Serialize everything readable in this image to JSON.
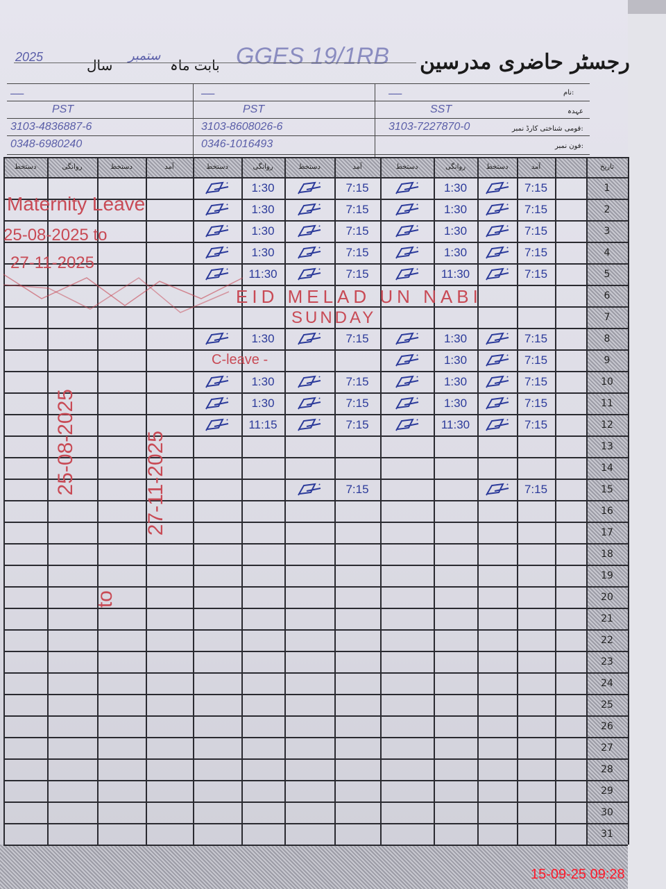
{
  "header": {
    "title": "رجسٹر حاضری مدرسین",
    "school": "GGES 19/1RB",
    "month_label": "بابت ماہ",
    "month_value": "ستمبر",
    "year_label": "سال",
    "year_value": "2025"
  },
  "info_labels": {
    "name": "نام:",
    "designation": "عہدہ",
    "cnic": "قومی شناختی کارڈ نمبر:",
    "phone": "فون نمبر:"
  },
  "column_headers": {
    "signature": "دستخط",
    "departure": "روانگی",
    "arrival": "آمد",
    "date": "تاریخ"
  },
  "teachers": [
    {
      "name": "ـــــ",
      "designation": "SST",
      "cnic": "3103-7227870-0",
      "phone": "",
      "records": [
        {
          "day": 1,
          "arrival": "7:15",
          "departure": "1:30",
          "signed": true
        },
        {
          "day": 2,
          "arrival": "7:15",
          "departure": "1:30",
          "signed": true
        },
        {
          "day": 3,
          "arrival": "7:15",
          "departure": "1:30",
          "signed": true
        },
        {
          "day": 4,
          "arrival": "7:15",
          "departure": "1:30",
          "signed": true
        },
        {
          "day": 5,
          "arrival": "7:15",
          "departure": "11:30",
          "signed": true
        },
        {
          "day": 8,
          "arrival": "7:15",
          "departure": "1:30",
          "signed": true
        },
        {
          "day": 9,
          "arrival": "7:15",
          "departure": "1:30",
          "signed": true
        },
        {
          "day": 10,
          "arrival": "7:15",
          "departure": "1:30",
          "signed": true
        },
        {
          "day": 11,
          "arrival": "7:15",
          "departure": "1:30",
          "signed": true
        },
        {
          "day": 12,
          "arrival": "7:15",
          "departure": "11:30",
          "signed": true
        },
        {
          "day": 15,
          "arrival": "7:15",
          "departure": "",
          "signed": true
        }
      ]
    },
    {
      "name": "ـــــ",
      "designation": "PST",
      "cnic": "3103-8608026-6",
      "phone": "0346-1016493",
      "records": [
        {
          "day": 1,
          "arrival": "7:15",
          "departure": "1:30",
          "signed": true
        },
        {
          "day": 2,
          "arrival": "7:15",
          "departure": "1:30",
          "signed": true
        },
        {
          "day": 3,
          "arrival": "7:15",
          "departure": "1:30",
          "signed": true
        },
        {
          "day": 4,
          "arrival": "7:15",
          "departure": "1:30",
          "signed": true
        },
        {
          "day": 5,
          "arrival": "7:15",
          "departure": "11:30",
          "signed": true
        },
        {
          "day": 8,
          "arrival": "7:15",
          "departure": "1:30",
          "signed": true
        },
        {
          "day": 10,
          "arrival": "7:15",
          "departure": "1:30",
          "signed": true
        },
        {
          "day": 11,
          "arrival": "7:15",
          "departure": "1:30",
          "signed": true
        },
        {
          "day": 12,
          "arrival": "7:15",
          "departure": "11:15",
          "signed": true
        },
        {
          "day": 15,
          "arrival": "7:15",
          "departure": "",
          "signed": true
        }
      ]
    },
    {
      "name": "ـــــ",
      "designation": "PST",
      "cnic": "3103-4836887-6",
      "phone": "0348-6980240",
      "records": []
    }
  ],
  "annotations": {
    "maternity": "Maternity Leave",
    "maternity_from": "25-08-2025 to",
    "maternity_to": "27-11-2025",
    "vertical_from": "25-08-2025",
    "vertical_to_word": "to",
    "vertical_to": "27-11-2025",
    "holiday": "EID MELAD UN NABI",
    "sunday": "SUNDAY",
    "c_leave": "C-leave -"
  },
  "timestamp": "15-09-25  09:28",
  "colors": {
    "ink_blue": "#2b3a9a",
    "ink_red": "#c84a55",
    "timestamp": "#ff1a2a"
  }
}
